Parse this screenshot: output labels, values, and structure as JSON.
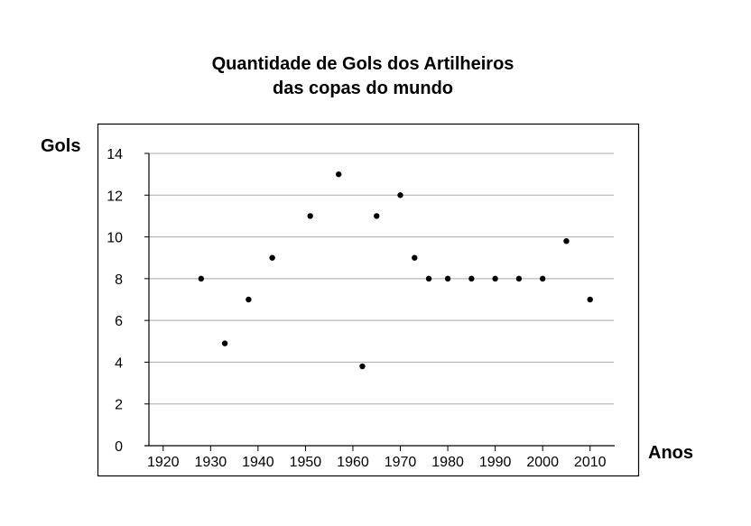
{
  "chart_data": {
    "type": "scatter",
    "title_lines": [
      "Quantidade de Gols dos Artilheiros",
      "das copas do mundo"
    ],
    "xlabel": "Anos",
    "ylabel": "Gols",
    "xlim": [
      1917,
      2015
    ],
    "ylim": [
      0,
      14
    ],
    "x_ticks": [
      1920,
      1930,
      1940,
      1950,
      1960,
      1970,
      1980,
      1990,
      2000,
      2010
    ],
    "y_ticks": [
      0,
      2,
      4,
      6,
      8,
      10,
      12,
      14
    ],
    "grid": "horizontal",
    "points": [
      {
        "x": 1928,
        "y": 8
      },
      {
        "x": 1933,
        "y": 4.9
      },
      {
        "x": 1938,
        "y": 7
      },
      {
        "x": 1943,
        "y": 9
      },
      {
        "x": 1951,
        "y": 11
      },
      {
        "x": 1957,
        "y": 13
      },
      {
        "x": 1962,
        "y": 3.8
      },
      {
        "x": 1965,
        "y": 11
      },
      {
        "x": 1970,
        "y": 12
      },
      {
        "x": 1973,
        "y": 9
      },
      {
        "x": 1976,
        "y": 8
      },
      {
        "x": 1980,
        "y": 8
      },
      {
        "x": 1985,
        "y": 8
      },
      {
        "x": 1990,
        "y": 8
      },
      {
        "x": 1995,
        "y": 8
      },
      {
        "x": 2000,
        "y": 8
      },
      {
        "x": 2005,
        "y": 9.8
      },
      {
        "x": 2010,
        "y": 7
      }
    ]
  }
}
